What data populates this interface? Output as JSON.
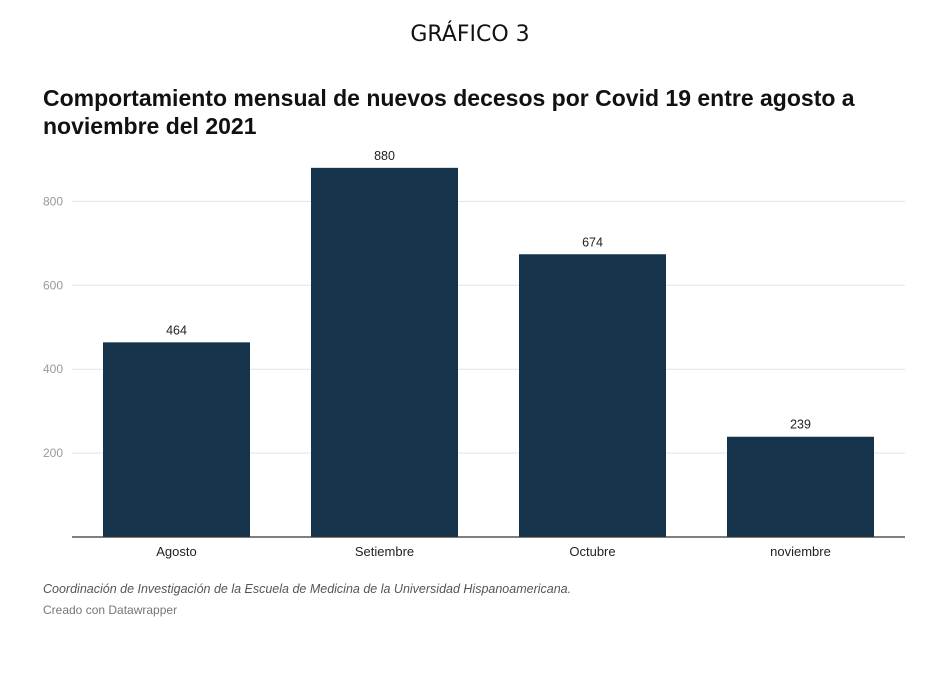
{
  "figure_label": "GRÁFICO 3",
  "chart_data": {
    "type": "bar",
    "title": "Comportamiento mensual de nuevos decesos por Covid 19 entre agosto a noviembre del 2021",
    "categories": [
      "Agosto",
      "Setiembre",
      "Octubre",
      "noviembre"
    ],
    "values": [
      464,
      880,
      674,
      239
    ],
    "xlabel": "",
    "ylabel": "",
    "ylim": [
      0,
      920
    ],
    "yticks": [
      200,
      400,
      600,
      800
    ],
    "grid": true,
    "bar_color": "#15334a",
    "data_labels": true
  },
  "footer": {
    "source": "Coordinación de Investigación de la Escuela de Medicina de la Universidad Hispanoamericana.",
    "credit": "Creado con Datawrapper"
  }
}
